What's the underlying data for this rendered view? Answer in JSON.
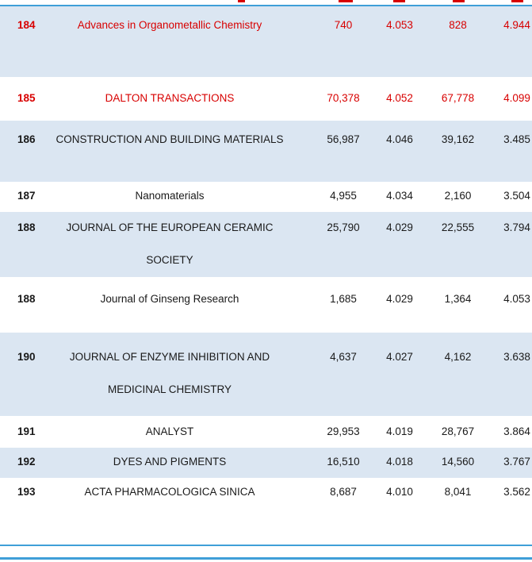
{
  "colors": {
    "accent": "#3f9fd8",
    "row_shade": "#dbe6f2",
    "highlight_red": "#d80000",
    "text": "#1a1a1a"
  },
  "table": {
    "description": "Journal ranking table fragment with rank, journal title and four numeric metric columns",
    "rows": [
      {
        "rank": "184",
        "name1": "Advances in Organometallic Chemistry",
        "name2": "",
        "v1": "740",
        "v2": "4.053",
        "v3": "828",
        "v4": "4.944"
      },
      {
        "rank": "185",
        "name1": "DALTON TRANSACTIONS",
        "name2": "",
        "v1": "70,378",
        "v2": "4.052",
        "v3": "67,778",
        "v4": "4.099"
      },
      {
        "rank": "186",
        "name1": "CONSTRUCTION AND BUILDING MATERIALS",
        "name2": "",
        "v1": "56,987",
        "v2": "4.046",
        "v3": "39,162",
        "v4": "3.485"
      },
      {
        "rank": "187",
        "name1": "Nanomaterials",
        "name2": "",
        "v1": "4,955",
        "v2": "4.034",
        "v3": "2,160",
        "v4": "3.504"
      },
      {
        "rank": "188",
        "name1": "JOURNAL OF THE EUROPEAN CERAMIC",
        "name2": "SOCIETY",
        "v1": "25,790",
        "v2": "4.029",
        "v3": "22,555",
        "v4": "3.794"
      },
      {
        "rank": "188",
        "name1": "Journal of Ginseng Research",
        "name2": "",
        "v1": "1,685",
        "v2": "4.029",
        "v3": "1,364",
        "v4": "4.053"
      },
      {
        "rank": "190",
        "name1": "JOURNAL OF ENZYME INHIBITION AND",
        "name2": "MEDICINAL CHEMISTRY",
        "v1": "4,637",
        "v2": "4.027",
        "v3": "4,162",
        "v4": "3.638"
      },
      {
        "rank": "191",
        "name1": "ANALYST",
        "name2": "",
        "v1": "29,953",
        "v2": "4.019",
        "v3": "28,767",
        "v4": "3.864"
      },
      {
        "rank": "192",
        "name1": "DYES AND PIGMENTS",
        "name2": "",
        "v1": "16,510",
        "v2": "4.018",
        "v3": "14,560",
        "v4": "3.767"
      },
      {
        "rank": "193",
        "name1": "ACTA PHARMACOLOGICA SINICA",
        "name2": "",
        "v1": "8,687",
        "v2": "4.010",
        "v3": "8,041",
        "v4": "3.562"
      }
    ]
  }
}
